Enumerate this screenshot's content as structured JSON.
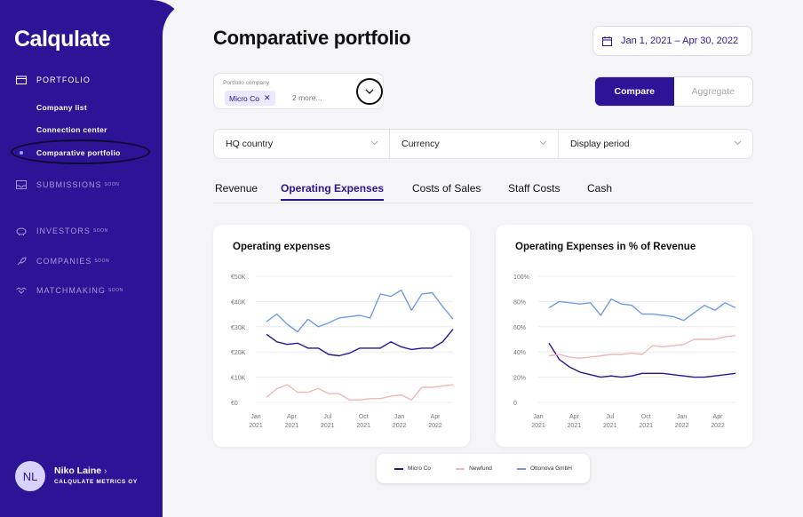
{
  "sidebar": {
    "logo": "Calqulate",
    "sections": [
      {
        "label": "PORTFOLIO",
        "icon": "portfolio-icon",
        "soon": ""
      },
      {
        "label": "SUBMISSIONS",
        "icon": "inbox-icon",
        "soon": "SOON"
      },
      {
        "label": "INVESTORS",
        "icon": "piggy-bank-icon",
        "soon": "SOON"
      },
      {
        "label": "COMPANIES",
        "icon": "rocket-icon",
        "soon": "SOON"
      },
      {
        "label": "MATCHMAKING",
        "icon": "handshake-icon",
        "soon": "SOON"
      }
    ],
    "portfolio_items": [
      "Company list",
      "Connection center",
      "Comparative portfolio"
    ],
    "user": {
      "initials": "NL",
      "name": "Niko Laine",
      "arrow": "›",
      "org": "CALQULATE METRICS OY"
    }
  },
  "header": {
    "title": "Comparative portfolio",
    "date_range": "Jan 1, 2021 – Apr 30, 2022"
  },
  "portfolio_company": {
    "label": "Portfolio company",
    "chip": "Micro Co",
    "more": "2 more..."
  },
  "mode": {
    "compare": "Compare",
    "aggregate": "Aggregate"
  },
  "filters": {
    "hq": "HQ country",
    "currency": "Currency",
    "period": "Display period"
  },
  "tabs": [
    "Revenue",
    "Operating Expenses",
    "Costs of Sales",
    "Staff Costs",
    "Cash"
  ],
  "active_tab": "Operating Expenses",
  "colors": {
    "accent": "#2d1396",
    "micro": "#2d1396",
    "newfund": "#f2b6b6",
    "ottonova": "#6f9ce8"
  },
  "chart_data": [
    {
      "type": "line",
      "title": "Operating expenses",
      "y_ticks": [
        "€0",
        "€10K",
        "€20K",
        "€30K",
        "€40K",
        "€50K"
      ],
      "ylim": [
        0,
        50000
      ],
      "x_tick_labels": [
        [
          "Jan",
          "2021"
        ],
        [
          "Apr",
          "2021"
        ],
        [
          "Jul",
          "2021"
        ],
        [
          "Oct",
          "2021"
        ],
        [
          "Jan",
          "2022"
        ],
        [
          "Apr",
          "2022"
        ]
      ],
      "grid": true,
      "series": [
        {
          "name": "Micro Co",
          "color": "#2d1396",
          "values": [
            27000,
            24000,
            23000,
            23500,
            21500,
            21500,
            19000,
            18500,
            19500,
            21500,
            21500,
            21500,
            24000,
            22000,
            21000,
            21500,
            21500,
            24000,
            29000
          ]
        },
        {
          "name": "Newfund",
          "color": "#f2b6b6",
          "values": [
            2000,
            5500,
            7000,
            4000,
            4000,
            5500,
            3500,
            3500,
            1000,
            1000,
            1500,
            1500,
            2500,
            3000,
            1000,
            6000,
            6000,
            6500,
            7000
          ]
        },
        {
          "name": "Ottonova GmbH",
          "color": "#6f9ce8",
          "values": [
            32000,
            35000,
            31000,
            28000,
            33000,
            30000,
            31500,
            33500,
            34000,
            34500,
            33500,
            43000,
            42000,
            44500,
            36500,
            43000,
            43500,
            38000,
            33000
          ]
        }
      ]
    },
    {
      "type": "line",
      "title": "Operating Expenses in % of Revenue",
      "y_ticks": [
        "0",
        "20%",
        "40%",
        "60%",
        "80%",
        "100%"
      ],
      "ylim": [
        0,
        100
      ],
      "x_tick_labels": [
        [
          "Jan",
          "2021"
        ],
        [
          "Apr",
          "2021"
        ],
        [
          "Jul",
          "2021"
        ],
        [
          "Oct",
          "2021"
        ],
        [
          "Jan",
          "2022"
        ],
        [
          "Apr",
          "2022"
        ]
      ],
      "grid": true,
      "series": [
        {
          "name": "Micro Co",
          "color": "#2d1396",
          "values": [
            47,
            34,
            28,
            24,
            22,
            20,
            21,
            20,
            21,
            23,
            23,
            23,
            22,
            21,
            20,
            20,
            21,
            22,
            23
          ]
        },
        {
          "name": "Newfund",
          "color": "#f2b6b6",
          "values": [
            37,
            38,
            36,
            35,
            36,
            37,
            38,
            38,
            39,
            38,
            45,
            44,
            45,
            46,
            50,
            50,
            50,
            52,
            53
          ]
        },
        {
          "name": "Ottonova GmbH",
          "color": "#6f9ce8",
          "values": [
            75,
            80,
            79,
            78,
            79,
            69,
            82,
            78,
            77,
            70,
            70,
            69,
            68,
            65,
            71,
            77,
            73,
            79,
            75
          ]
        }
      ]
    }
  ],
  "legend": [
    "Micro Co",
    "Newfund",
    "Ottonova GmbH"
  ]
}
